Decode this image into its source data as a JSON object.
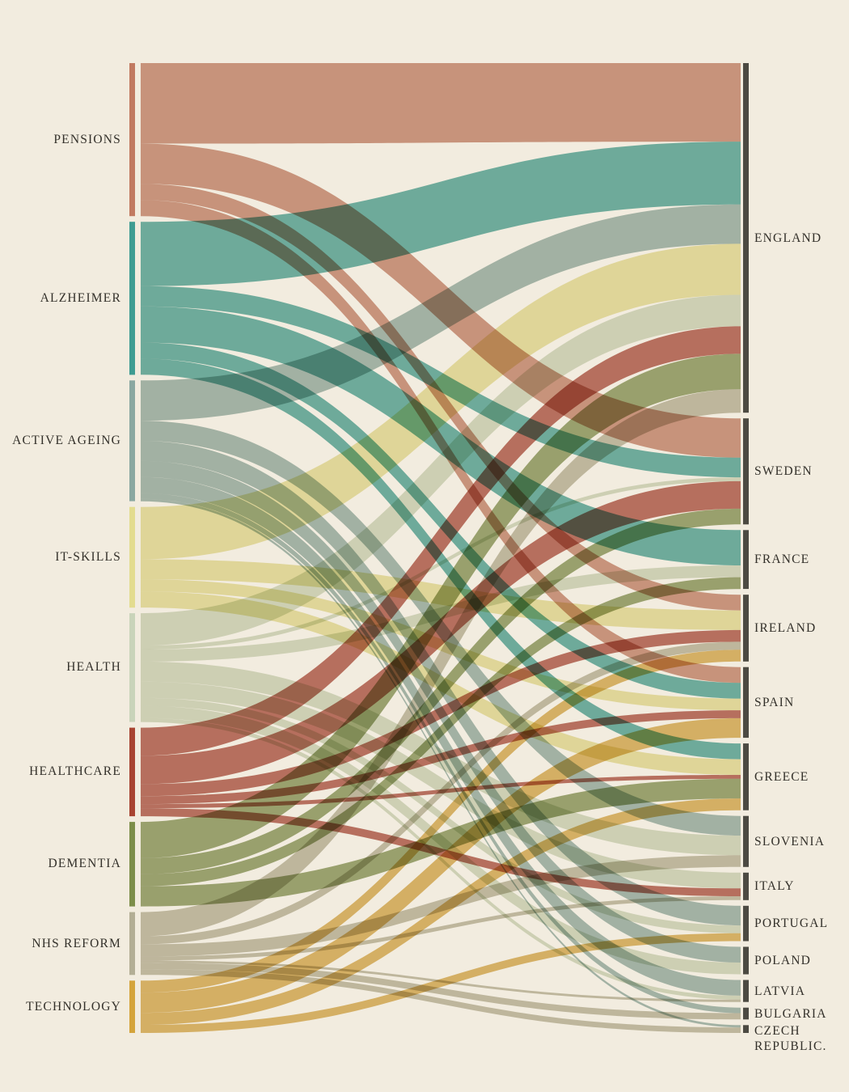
{
  "page": {
    "background_color": "#f2ecdf",
    "label_color": "#33302a"
  },
  "chart_data": {
    "type": "sankey",
    "title": "",
    "left_axis_role": "topics",
    "right_axis_role": "countries",
    "right_bar_color": "#4c4a42",
    "left_nodes": [
      {
        "id": "pensions",
        "label": "PENSIONS",
        "color": "#c17a61",
        "total": 190
      },
      {
        "id": "alzheimer",
        "label": "ALZHEIMER",
        "color": "#3f9c92",
        "total": 190
      },
      {
        "id": "active-ageing",
        "label": "ACTIVE AGEING",
        "color": "#8aa8a1",
        "total": 150
      },
      {
        "id": "it-skills",
        "label": "IT-SKILLS",
        "color": "#e3dc8f",
        "total": 125
      },
      {
        "id": "health",
        "label": "HEALTH",
        "color": "#c9d4ba",
        "total": 135
      },
      {
        "id": "healthcare",
        "label": "HEALTHCARE",
        "color": "#a84432",
        "total": 110
      },
      {
        "id": "dementia",
        "label": "DEMENTIA",
        "color": "#7d8e4a",
        "total": 105
      },
      {
        "id": "nhs-reform",
        "label": "NHS REFORM",
        "color": "#b3ae95",
        "total": 78
      },
      {
        "id": "technology",
        "label": "TECHNOLOGY",
        "color": "#d4a43c",
        "total": 65
      }
    ],
    "right_nodes": [
      {
        "id": "england",
        "label": "ENGLAND",
        "total": 445
      },
      {
        "id": "sweden",
        "label": "SWEDEN",
        "total": 135
      },
      {
        "id": "france",
        "label": "FRANCE",
        "total": 75
      },
      {
        "id": "ireland",
        "label": "IRELAND",
        "total": 85
      },
      {
        "id": "spain",
        "label": "SPAIN",
        "total": 90
      },
      {
        "id": "greece",
        "label": "GREECE",
        "total": 85
      },
      {
        "id": "slovenia",
        "label": "SLOVENIA",
        "total": 65
      },
      {
        "id": "italy",
        "label": "ITALY",
        "total": 35
      },
      {
        "id": "portugal",
        "label": "PORTUGAL",
        "total": 45
      },
      {
        "id": "poland",
        "label": "POLAND",
        "total": 35
      },
      {
        "id": "latvia",
        "label": "LATVIA",
        "total": 28
      },
      {
        "id": "bulgaria",
        "label": "BULGARIA",
        "total": 15
      },
      {
        "id": "czech-republic",
        "label": "CZECH REPUBLIC.",
        "total": 10
      }
    ],
    "links": [
      {
        "source": "pensions",
        "target": "england",
        "value": 100
      },
      {
        "source": "pensions",
        "target": "sweden",
        "value": 50
      },
      {
        "source": "pensions",
        "target": "ireland",
        "value": 20
      },
      {
        "source": "pensions",
        "target": "spain",
        "value": 20
      },
      {
        "source": "alzheimer",
        "target": "england",
        "value": 80
      },
      {
        "source": "alzheimer",
        "target": "sweden",
        "value": 25
      },
      {
        "source": "alzheimer",
        "target": "france",
        "value": 45
      },
      {
        "source": "alzheimer",
        "target": "spain",
        "value": 20
      },
      {
        "source": "alzheimer",
        "target": "greece",
        "value": 20
      },
      {
        "source": "active-ageing",
        "target": "england",
        "value": 50
      },
      {
        "source": "active-ageing",
        "target": "slovenia",
        "value": 25
      },
      {
        "source": "active-ageing",
        "target": "portugal",
        "value": 25
      },
      {
        "source": "active-ageing",
        "target": "poland",
        "value": 20
      },
      {
        "source": "active-ageing",
        "target": "latvia",
        "value": 20
      },
      {
        "source": "active-ageing",
        "target": "bulgaria",
        "value": 7
      },
      {
        "source": "active-ageing",
        "target": "czech-republic",
        "value": 3
      },
      {
        "source": "it-skills",
        "target": "england",
        "value": 65
      },
      {
        "source": "it-skills",
        "target": "ireland",
        "value": 25
      },
      {
        "source": "it-skills",
        "target": "spain",
        "value": 15
      },
      {
        "source": "it-skills",
        "target": "greece",
        "value": 20
      },
      {
        "source": "health",
        "target": "england",
        "value": 40
      },
      {
        "source": "health",
        "target": "sweden",
        "value": 5
      },
      {
        "source": "health",
        "target": "france",
        "value": 15
      },
      {
        "source": "health",
        "target": "slovenia",
        "value": 25
      },
      {
        "source": "health",
        "target": "italy",
        "value": 20
      },
      {
        "source": "health",
        "target": "portugal",
        "value": 10
      },
      {
        "source": "health",
        "target": "poland",
        "value": 15
      },
      {
        "source": "health",
        "target": "latvia",
        "value": 5
      },
      {
        "source": "healthcare",
        "target": "england",
        "value": 35
      },
      {
        "source": "healthcare",
        "target": "sweden",
        "value": 35
      },
      {
        "source": "healthcare",
        "target": "ireland",
        "value": 15
      },
      {
        "source": "healthcare",
        "target": "spain",
        "value": 10
      },
      {
        "source": "healthcare",
        "target": "greece",
        "value": 5
      },
      {
        "source": "healthcare",
        "target": "italy",
        "value": 10
      },
      {
        "source": "dementia",
        "target": "england",
        "value": 45
      },
      {
        "source": "dementia",
        "target": "sweden",
        "value": 20
      },
      {
        "source": "dementia",
        "target": "france",
        "value": 15
      },
      {
        "source": "dementia",
        "target": "greece",
        "value": 25
      },
      {
        "source": "nhs-reform",
        "target": "england",
        "value": 30
      },
      {
        "source": "nhs-reform",
        "target": "slovenia",
        "value": 15
      },
      {
        "source": "nhs-reform",
        "target": "ireland",
        "value": 10
      },
      {
        "source": "nhs-reform",
        "target": "italy",
        "value": 5
      },
      {
        "source": "nhs-reform",
        "target": "latvia",
        "value": 3
      },
      {
        "source": "nhs-reform",
        "target": "bulgaria",
        "value": 8
      },
      {
        "source": "nhs-reform",
        "target": "czech-republic",
        "value": 7
      },
      {
        "source": "technology",
        "target": "ireland",
        "value": 15
      },
      {
        "source": "technology",
        "target": "spain",
        "value": 25
      },
      {
        "source": "technology",
        "target": "greece",
        "value": 15
      },
      {
        "source": "technology",
        "target": "portugal",
        "value": 10
      }
    ]
  }
}
